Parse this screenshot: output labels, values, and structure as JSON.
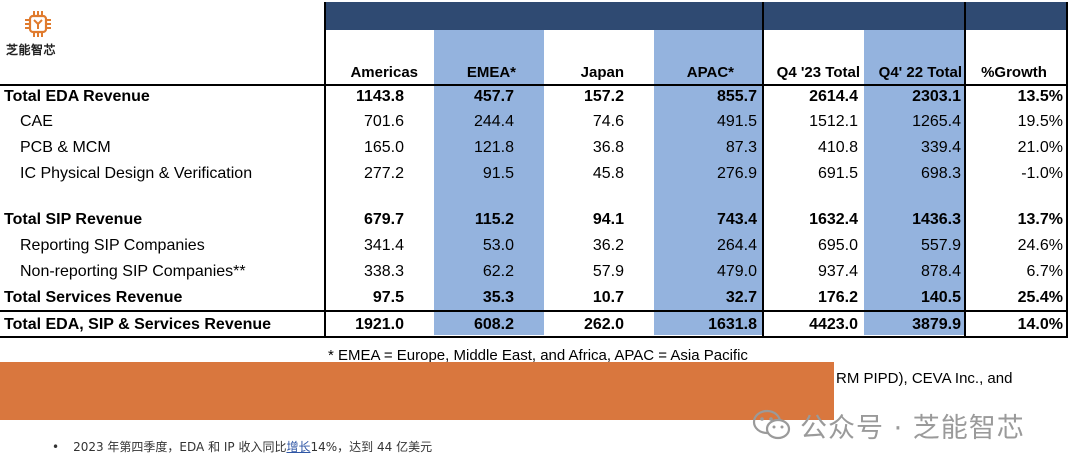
{
  "logo": {
    "text": "芝能智芯",
    "color": "#e07b2e"
  },
  "table": {
    "header_band_color": "#2f4a72",
    "highlight_color": "#94b3de",
    "columns": [
      "Americas",
      "EMEA*",
      "Japan",
      "APAC*",
      "Q4 '23 Total",
      "Q4' 22 Total",
      "%Growth"
    ],
    "rows": [
      {
        "label": "Total EDA Revenue",
        "bold": true,
        "indent": false,
        "values": [
          "1143.8",
          "457.7",
          "157.2",
          "855.7",
          "2614.4",
          "2303.1",
          "13.5%"
        ]
      },
      {
        "label": "CAE",
        "bold": false,
        "indent": true,
        "values": [
          "701.6",
          "244.4",
          "74.6",
          "491.5",
          "1512.1",
          "1265.4",
          "19.5%"
        ]
      },
      {
        "label": "PCB & MCM",
        "bold": false,
        "indent": true,
        "values": [
          "165.0",
          "121.8",
          "36.8",
          "87.3",
          "410.8",
          "339.4",
          "21.0%"
        ]
      },
      {
        "label": "IC Physical Design & Verification",
        "bold": false,
        "indent": true,
        "values": [
          "277.2",
          "91.5",
          "45.8",
          "276.9",
          "691.5",
          "698.3",
          "-1.0%"
        ]
      },
      {
        "label": "Total SIP Revenue",
        "bold": true,
        "indent": false,
        "values": [
          "679.7",
          "115.2",
          "94.1",
          "743.4",
          "1632.4",
          "1436.3",
          "13.7%"
        ]
      },
      {
        "label": "Reporting SIP Companies",
        "bold": false,
        "indent": true,
        "values": [
          "341.4",
          "53.0",
          "36.2",
          "264.4",
          "695.0",
          "557.9",
          "24.6%"
        ]
      },
      {
        "label": "Non-reporting SIP Companies**",
        "bold": false,
        "indent": true,
        "values": [
          "338.3",
          "62.2",
          "57.9",
          "479.0",
          "937.4",
          "878.4",
          "6.7%"
        ]
      },
      {
        "label": "Total Services Revenue",
        "bold": true,
        "indent": false,
        "values": [
          "97.5",
          "35.3",
          "10.7",
          "32.7",
          "176.2",
          "140.5",
          "25.4%"
        ]
      },
      {
        "label": "Total EDA, SIP & Services Revenue",
        "bold": true,
        "indent": false,
        "values": [
          "1921.0",
          "608.2",
          "262.0",
          "1631.8",
          "4423.0",
          "3879.9",
          "14.0%"
        ]
      }
    ]
  },
  "footnote": "* EMEA = Europe, Middle East, and Africa, APAC = Asia Pacific",
  "trailing_text": "RM PIPD), CEVA Inc., and",
  "overlay_color": "#d9773e",
  "watermark": {
    "text": "公众号 · 芝能智芯",
    "icon": "wechat-icon"
  },
  "bullet": {
    "prefix": "2023 年第四季度，EDA 和 IP 收入同比",
    "link": "增长",
    "suffix": "14%，达到 44 亿美元"
  }
}
